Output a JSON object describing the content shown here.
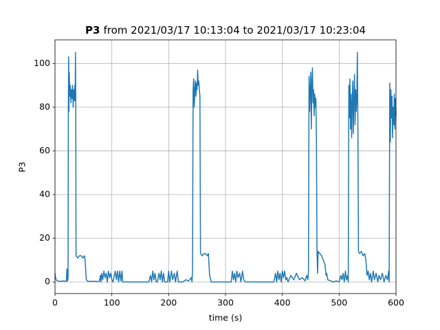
{
  "chart_data": {
    "type": "line",
    "title": {
      "bold": "P3",
      "rest": "from 2021/03/17 10:13:04 to 2021/03/17 10:23:04"
    },
    "xlabel": "time (s)",
    "ylabel": "P3",
    "color": "#1f77b4",
    "grid": true,
    "xlim": [
      0,
      600
    ],
    "ylim": [
      -5.3,
      110.8
    ],
    "xticks": [
      0,
      100,
      200,
      300,
      400,
      500,
      600
    ],
    "yticks": [
      0,
      20,
      40,
      60,
      80,
      100
    ],
    "x": [
      0,
      1,
      2,
      4,
      8,
      14,
      20,
      21,
      22,
      23,
      23.5,
      24,
      24.5,
      25,
      26,
      27,
      28,
      29,
      30,
      31,
      32,
      33,
      34,
      35,
      35.5,
      36,
      36.5,
      37,
      40,
      43,
      46,
      49,
      52,
      53,
      55,
      58,
      70,
      78,
      80,
      81,
      82,
      84,
      86,
      88,
      90,
      92,
      94,
      96,
      98,
      100,
      102,
      106,
      108,
      110,
      112,
      114,
      116,
      118,
      119,
      125,
      140,
      165,
      168,
      170,
      172,
      174,
      176,
      178,
      180,
      183,
      185,
      187,
      189,
      191,
      193,
      198,
      200,
      202,
      205,
      207,
      210,
      212,
      215,
      217,
      225,
      230,
      235,
      240,
      241,
      242,
      243,
      244,
      245,
      246,
      247,
      248,
      249,
      250,
      251,
      252,
      253,
      254,
      255,
      256,
      259,
      262,
      265,
      268,
      270,
      272,
      275,
      290,
      305,
      310,
      312,
      314,
      316,
      318,
      320,
      322,
      325,
      327,
      330,
      332,
      335,
      350,
      370,
      385,
      388,
      390,
      392,
      394,
      396,
      398,
      400,
      402,
      404,
      406,
      408,
      410,
      415,
      420,
      425,
      430,
      435,
      440,
      443,
      445,
      446,
      447,
      448,
      449,
      450,
      451,
      452,
      453,
      454,
      455,
      456,
      457,
      458,
      459,
      460,
      461,
      462,
      463,
      466,
      469,
      472,
      475,
      477,
      478,
      480,
      485,
      490,
      495,
      500,
      503,
      505,
      507,
      509,
      511,
      513,
      515,
      516,
      517,
      518,
      519,
      520,
      521,
      522,
      523,
      524,
      525,
      526,
      527,
      528,
      529,
      530,
      531,
      532,
      533,
      534,
      536,
      539,
      542,
      545,
      547,
      549,
      551,
      553,
      555,
      557,
      560,
      562,
      565,
      568,
      570,
      573,
      576,
      579,
      582,
      585,
      587,
      588,
      589,
      590,
      591,
      592,
      593,
      594,
      595,
      596,
      597,
      598,
      599,
      600
    ],
    "values": [
      4,
      2,
      1,
      0.5,
      0.3,
      0.5,
      0.3,
      6,
      0.5,
      2,
      80,
      103,
      78,
      96,
      85,
      90,
      82,
      88,
      84,
      90,
      80,
      88,
      83,
      90,
      83,
      105,
      86,
      12,
      11,
      12,
      12,
      11,
      12,
      10,
      1,
      0.3,
      0.3,
      0.2,
      3,
      0,
      4,
      1,
      5,
      2,
      4,
      0,
      5,
      2,
      4,
      1,
      0,
      5,
      1,
      5,
      0,
      5,
      0.5,
      5,
      0,
      0,
      0,
      0,
      3,
      0,
      5,
      1,
      4,
      0,
      0,
      4,
      1,
      5,
      0,
      4,
      0,
      0,
      5,
      0,
      5,
      1,
      4,
      0,
      5,
      0,
      0,
      1,
      0.5,
      2,
      0,
      5,
      88,
      93,
      80,
      87,
      92,
      85,
      91,
      88,
      97,
      90,
      92,
      88,
      85,
      13,
      12,
      13,
      13,
      12,
      13,
      3,
      0,
      0,
      0,
      0,
      5,
      1,
      4,
      0,
      5,
      2,
      4,
      0,
      5,
      1,
      0,
      0,
      0,
      0,
      4,
      0,
      5,
      1,
      4,
      0,
      5,
      2,
      5,
      1,
      2,
      0,
      3,
      1,
      4,
      1,
      2,
      0.5,
      3,
      1,
      5,
      94,
      78,
      88,
      96,
      70,
      90,
      98,
      82,
      88,
      76,
      86,
      80,
      84,
      65,
      14,
      4,
      14,
      13,
      12,
      10,
      8,
      3,
      4,
      1,
      0.5,
      0,
      0.5,
      0,
      3,
      1,
      4,
      0,
      5,
      1,
      3,
      0,
      90,
      75,
      93,
      70,
      86,
      66,
      82,
      92,
      68,
      85,
      95,
      72,
      88,
      78,
      84,
      105,
      70,
      14,
      13,
      14,
      12,
      13,
      10,
      3,
      5,
      1,
      4,
      0,
      5,
      1,
      4,
      0,
      3,
      1,
      4,
      0,
      3,
      1,
      5,
      0,
      91,
      64,
      88,
      75,
      85,
      66,
      80,
      72,
      86,
      70,
      84,
      76
    ]
  }
}
